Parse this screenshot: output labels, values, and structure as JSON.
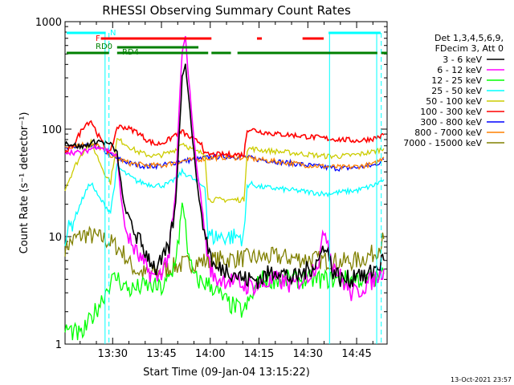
{
  "chart_data": {
    "type": "line",
    "title": "RHESSI Observing Summary Count Rates",
    "xlabel": "Start Time (09-Jan-04 13:15:22)",
    "ylabel": "Count Rate (s⁻¹ detector⁻¹)",
    "y_scale": "log",
    "ylim": [
      1,
      1000
    ],
    "xlim_minutes_after_start": [
      0,
      99
    ],
    "x_ticks": [
      "13:30",
      "13:45",
      "14:00",
      "14:15",
      "14:30",
      "14:45"
    ],
    "y_ticks": [
      "1",
      "10",
      "100",
      "1000"
    ],
    "info_lines": [
      "Det 1,3,4,5,6,9,",
      "FDecim 3, Att 0"
    ],
    "timestamp": "13-Oct-2021 23:57",
    "flags": [
      {
        "label": "N",
        "color": "#00ffff"
      },
      {
        "label": "F",
        "color": "#ff0000"
      },
      {
        "label": "RD0",
        "color": "#008000"
      },
      {
        "label": "RD4",
        "color": "#008000"
      }
    ],
    "series": [
      {
        "name": "3 - 6 keV",
        "color": "#000000",
        "x": [
          0,
          5,
          10,
          14,
          16,
          18,
          20,
          22,
          25,
          28,
          30,
          32,
          34,
          35,
          36,
          37,
          38,
          40,
          42,
          44,
          46,
          50,
          55,
          60,
          65,
          70,
          75,
          78,
          80,
          82,
          85,
          88,
          90,
          92,
          95,
          98
        ],
        "values": [
          75,
          68,
          78,
          72,
          60,
          20,
          14,
          10,
          7,
          5,
          6,
          8,
          20,
          80,
          300,
          420,
          200,
          45,
          15,
          8,
          5,
          5,
          4,
          4,
          5,
          4,
          5,
          6,
          9,
          5,
          4,
          4,
          5,
          4,
          5,
          6
        ]
      },
      {
        "name": "6 - 12 keV",
        "color": "#ff00ff",
        "x": [
          0,
          5,
          10,
          14,
          16,
          18,
          20,
          22,
          25,
          28,
          30,
          32,
          34,
          35,
          36,
          37,
          38,
          40,
          42,
          44,
          46,
          50,
          55,
          60,
          65,
          70,
          75,
          78,
          80,
          82,
          85,
          88,
          90,
          92,
          95,
          98
        ],
        "values": [
          62,
          60,
          70,
          62,
          55,
          14,
          9,
          7,
          5,
          4,
          5,
          7,
          25,
          140,
          520,
          700,
          300,
          60,
          20,
          6,
          4,
          4,
          3.5,
          3.5,
          4,
          3.5,
          4.5,
          6,
          12,
          6,
          4,
          3,
          3,
          3.5,
          4,
          5
        ]
      },
      {
        "name": "12 - 25 keV",
        "color": "#00ff00",
        "x": [
          0,
          5,
          10,
          14,
          16,
          18,
          20,
          25,
          30,
          33,
          35,
          36,
          37,
          38,
          40,
          45,
          50,
          55,
          60,
          65,
          70,
          75,
          80,
          85,
          90,
          95,
          98
        ],
        "values": [
          1.4,
          1.2,
          2.2,
          3.8,
          4.2,
          3.5,
          3.2,
          3.5,
          3.3,
          4.5,
          10,
          20,
          14,
          6,
          4,
          3.5,
          2.4,
          2,
          4,
          4,
          4,
          4,
          4,
          4,
          4,
          4,
          4.5
        ]
      },
      {
        "name": "25 - 50 keV",
        "color": "#00ffff",
        "x": [
          0,
          3,
          6,
          8,
          10,
          12,
          14,
          16,
          18,
          20,
          22,
          25,
          28,
          30,
          32,
          34,
          36,
          38,
          40,
          42,
          43,
          44,
          50,
          55,
          56,
          57,
          60,
          65,
          70,
          75,
          80,
          85,
          90,
          95,
          98
        ],
        "values": [
          10,
          15,
          25,
          32,
          24,
          20,
          17,
          45,
          40,
          36,
          33,
          31,
          30,
          30,
          31,
          35,
          40,
          37,
          33,
          30,
          30,
          10,
          10,
          10,
          30,
          31,
          29,
          28,
          27,
          26,
          25,
          26,
          27,
          30,
          34
        ]
      },
      {
        "name": "50 - 100 keV",
        "color": "#cccc00",
        "x": [
          0,
          3,
          6,
          8,
          10,
          12,
          14,
          16,
          18,
          20,
          22,
          25,
          28,
          30,
          32,
          34,
          36,
          38,
          40,
          42,
          43,
          44,
          50,
          55,
          56,
          57,
          60,
          65,
          70,
          75,
          80,
          85,
          90,
          95,
          98
        ],
        "values": [
          28,
          45,
          65,
          75,
          55,
          40,
          32,
          80,
          75,
          68,
          62,
          58,
          56,
          58,
          60,
          65,
          75,
          68,
          62,
          60,
          60,
          22,
          22,
          22,
          65,
          66,
          64,
          62,
          60,
          58,
          56,
          56,
          58,
          62,
          66
        ]
      },
      {
        "name": "100 - 300 keV",
        "color": "#ff0000",
        "x": [
          0,
          3,
          6,
          8,
          10,
          12,
          14,
          16,
          18,
          20,
          22,
          25,
          28,
          30,
          32,
          34,
          36,
          38,
          40,
          42,
          43,
          44,
          50,
          55,
          56,
          57,
          60,
          65,
          70,
          75,
          80,
          85,
          90,
          95,
          98
        ],
        "values": [
          58,
          75,
          110,
          120,
          90,
          70,
          60,
          105,
          105,
          100,
          95,
          80,
          72,
          75,
          80,
          90,
          95,
          85,
          78,
          75,
          58,
          58,
          58,
          58,
          100,
          100,
          95,
          90,
          88,
          85,
          82,
          80,
          78,
          82,
          88
        ]
      },
      {
        "name": "300 - 800 keV",
        "color": "#0000ff",
        "x": [
          0,
          5,
          10,
          15,
          20,
          25,
          30,
          35,
          40,
          45,
          50,
          55,
          60,
          65,
          70,
          75,
          80,
          85,
          90,
          95,
          98
        ],
        "values": [
          65,
          70,
          68,
          55,
          48,
          45,
          46,
          50,
          52,
          55,
          56,
          55,
          52,
          50,
          48,
          46,
          44,
          43,
          44,
          46,
          52
        ]
      },
      {
        "name": "800 - 7000 keV",
        "color": "#ff8000",
        "x": [
          0,
          5,
          10,
          15,
          20,
          25,
          30,
          35,
          40,
          45,
          50,
          55,
          60,
          65,
          70,
          75,
          80,
          85,
          90,
          95,
          98
        ],
        "values": [
          68,
          72,
          70,
          55,
          48,
          46,
          46,
          50,
          52,
          54,
          55,
          54,
          52,
          50,
          48,
          46,
          45,
          44,
          45,
          47,
          55
        ]
      },
      {
        "name": "7000 - 15000 keV",
        "color": "#808000",
        "x": [
          0,
          3,
          6,
          9,
          12,
          15,
          18,
          20,
          22,
          25,
          28,
          30,
          33,
          36,
          40,
          45,
          50,
          55,
          60,
          65,
          70,
          75,
          80,
          85,
          90,
          95,
          98
        ],
        "values": [
          8,
          9.5,
          10.5,
          10,
          9.5,
          8.5,
          7,
          5.5,
          4.8,
          4.5,
          4.6,
          4.8,
          5.2,
          5.5,
          5.8,
          6,
          6.2,
          6.3,
          6.4,
          6.5,
          6.3,
          6.2,
          6,
          5.8,
          6,
          7,
          9.5
        ]
      }
    ]
  }
}
